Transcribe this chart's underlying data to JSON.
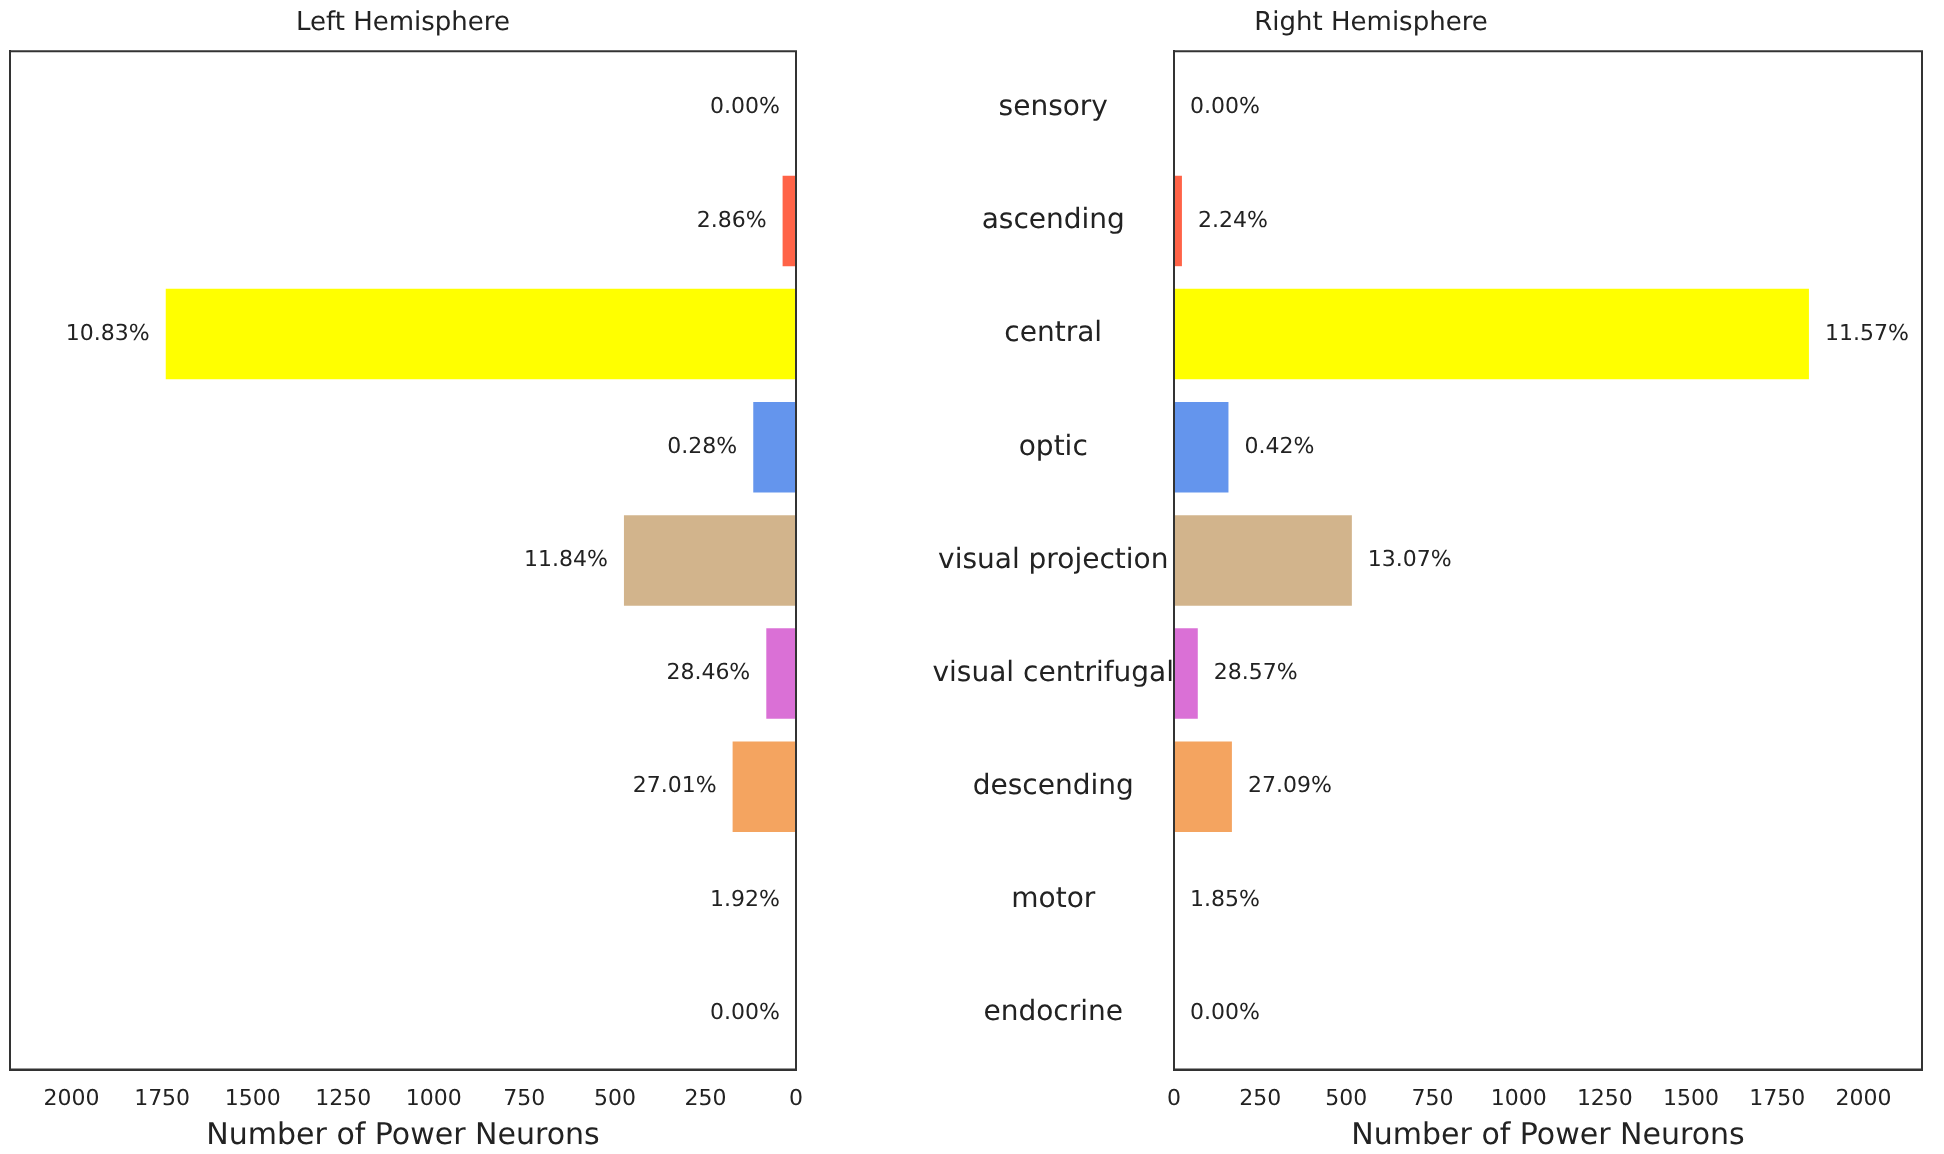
{
  "chart_data": [
    {
      "type": "bar",
      "orientation": "horizontal",
      "title": "Left Hemisphere",
      "xlabel": "Number of Power Neurons",
      "categories": [
        "sensory",
        "ascending",
        "central",
        "optic",
        "visual projection",
        "visual centrifugal",
        "descending",
        "motor",
        "endocrine"
      ],
      "values": [
        0,
        37,
        1740,
        118,
        475,
        82,
        175,
        0,
        0
      ],
      "colors": [
        "#ff6347",
        "#ff6347",
        "#ffff00",
        "#6495ed",
        "#d2b48c",
        "#da70d6",
        "#f4a460",
        "#ff6347",
        "#ff6347"
      ],
      "annotations": [
        {
          "text": "0.00%",
          "x": 0,
          "y": "sensory"
        },
        {
          "text": "2.86%",
          "x": 37,
          "y": "ascending"
        },
        {
          "text": "10.83%",
          "x": 1740,
          "y": "central"
        },
        {
          "text": "0.28%",
          "x": 118,
          "y": "optic"
        },
        {
          "text": "11.84%",
          "x": 475,
          "y": "visual projection"
        },
        {
          "text": "28.46%",
          "x": 82,
          "y": "visual centrifugal"
        },
        {
          "text": "27.01%",
          "x": 175,
          "y": "descending"
        },
        {
          "text": "1.92%",
          "x": 0,
          "y": "motor"
        },
        {
          "text": "0.00%",
          "x": 0,
          "y": "endocrine"
        }
      ],
      "xlim": [
        2170,
        0
      ],
      "xticks": [
        2000,
        1750,
        1500,
        1250,
        1000,
        750,
        500,
        250,
        0
      ],
      "tick_labels": "x",
      "grid": false
    },
    {
      "type": "bar",
      "orientation": "horizontal",
      "title": "Right Hemisphere",
      "xlabel": "Number of Power Neurons",
      "categories": [
        "sensory",
        "ascending",
        "central",
        "optic",
        "visual projection",
        "visual centrifugal",
        "descending",
        "motor",
        "endocrine"
      ],
      "values": [
        0,
        23,
        1842,
        158,
        516,
        69,
        168,
        0,
        0
      ],
      "colors": [
        "#ff6347",
        "#ff6347",
        "#ffff00",
        "#6495ed",
        "#d2b48c",
        "#da70d6",
        "#f4a460",
        "#ff6347",
        "#ff6347"
      ],
      "annotations": [
        {
          "text": "0.00%",
          "x": 0,
          "y": "sensory"
        },
        {
          "text": "2.24%",
          "x": 23,
          "y": "ascending"
        },
        {
          "text": "11.57%",
          "x": 1842,
          "y": "central"
        },
        {
          "text": "0.42%",
          "x": 158,
          "y": "optic"
        },
        {
          "text": "13.07%",
          "x": 516,
          "y": "visual projection"
        },
        {
          "text": "28.57%",
          "x": 69,
          "y": "visual centrifugal"
        },
        {
          "text": "27.09%",
          "x": 168,
          "y": "descending"
        },
        {
          "text": "1.85%",
          "x": 0,
          "y": "motor"
        },
        {
          "text": "0.00%",
          "x": 0,
          "y": "endocrine"
        }
      ],
      "xlim": [
        0,
        2170
      ],
      "xticks": [
        0,
        250,
        500,
        750,
        1000,
        1250,
        1500,
        1750,
        2000
      ],
      "grid": false
    }
  ]
}
